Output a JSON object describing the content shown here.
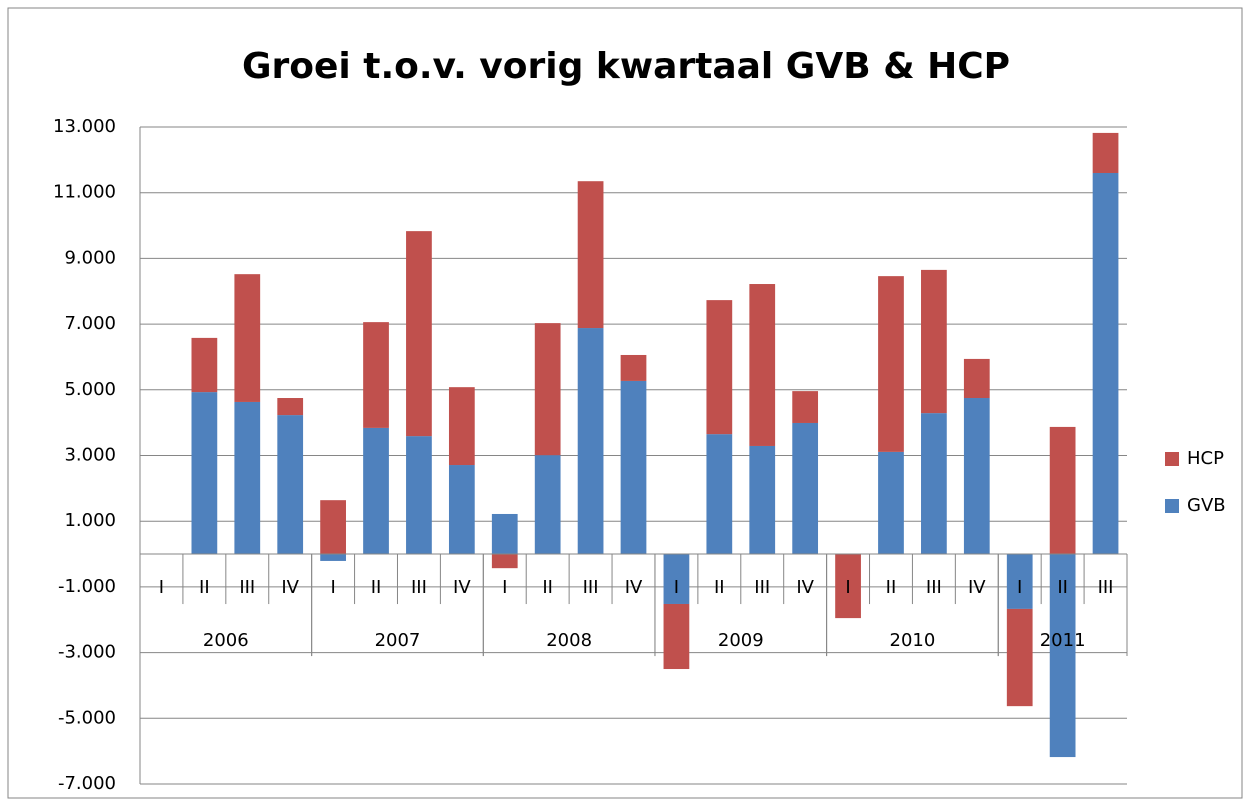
{
  "chart_data": {
    "type": "bar",
    "stacked": true,
    "title": "Groei t.o.v. vorig kwartaal GVB & HCP",
    "groups": [
      {
        "name": "2006",
        "categories": [
          "I",
          "II",
          "III",
          "IV"
        ]
      },
      {
        "name": "2007",
        "categories": [
          "I",
          "II",
          "III",
          "IV"
        ]
      },
      {
        "name": "2008",
        "categories": [
          "I",
          "II",
          "III",
          "IV"
        ]
      },
      {
        "name": "2009",
        "categories": [
          "I",
          "II",
          "III",
          "IV"
        ]
      },
      {
        "name": "2010",
        "categories": [
          "I",
          "II",
          "III",
          "IV"
        ]
      },
      {
        "name": "2011",
        "categories": [
          "I",
          "II",
          "III"
        ]
      }
    ],
    "series": [
      {
        "name": "GVB",
        "color": "#4f81bd",
        "values": [
          0,
          4930,
          4630,
          4230,
          -210,
          3840,
          3590,
          2710,
          1220,
          3010,
          6880,
          5270,
          -1520,
          3650,
          3290,
          3990,
          0,
          3110,
          4290,
          4750,
          -1670,
          -6180,
          11600
        ]
      },
      {
        "name": "HCP",
        "color": "#c0504d",
        "values": [
          0,
          1650,
          3890,
          520,
          1640,
          3220,
          6240,
          2370,
          -430,
          4020,
          4470,
          790,
          -1980,
          4080,
          4930,
          970,
          -1950,
          5350,
          4360,
          1190,
          -2960,
          3870,
          1220
        ]
      }
    ],
    "ylim": [
      -7000,
      13000
    ],
    "yticks": [
      {
        "value": -7000,
        "label": "-7.000"
      },
      {
        "value": -5000,
        "label": "-5.000"
      },
      {
        "value": -3000,
        "label": "-3.000"
      },
      {
        "value": -1000,
        "label": "-1.000"
      },
      {
        "value": 1000,
        "label": "1.000"
      },
      {
        "value": 3000,
        "label": "3.000"
      },
      {
        "value": 5000,
        "label": "5.000"
      },
      {
        "value": 7000,
        "label": "7.000"
      },
      {
        "value": 9000,
        "label": "9.000"
      },
      {
        "value": 11000,
        "label": "11.000"
      },
      {
        "value": 13000,
        "label": "13.000"
      }
    ],
    "grid": true,
    "legend": "right"
  }
}
